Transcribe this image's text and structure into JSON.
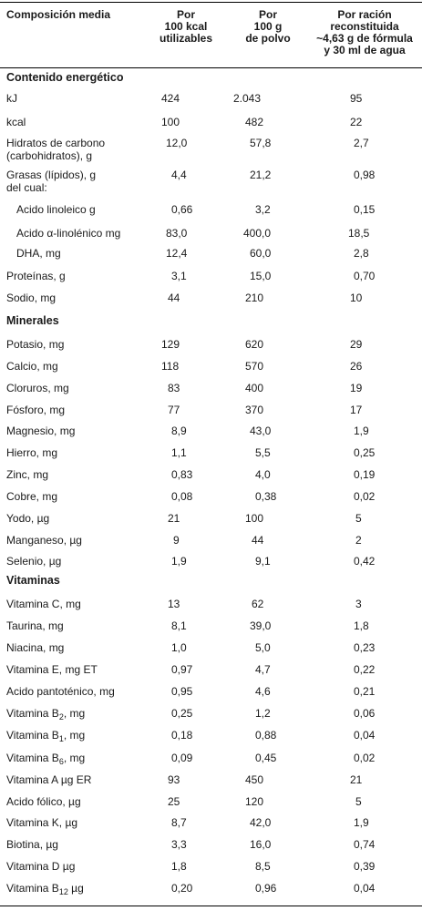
{
  "headers": [
    "Composición media",
    "Por\n100 kcal\nutilizables",
    "Por\n100 g\nde polvo",
    "Por ración\nreconstituida\n~4,63 g de fórmula\ny 30 ml de agua"
  ],
  "sections": [
    {
      "title": "Contenido energético",
      "rows": [
        {
          "label": "kJ",
          "v": [
            "424",
            "2.043",
            "95"
          ]
        },
        {
          "label": "kcal",
          "v": [
            "100",
            "482",
            "22"
          ]
        },
        {
          "label": "Hidratos de carbono\n(carbohidratos), g",
          "v": [
            "12,0",
            "57,8",
            "2,7"
          ]
        },
        {
          "label": "Grasas (lípidos), g\ndel cual:",
          "v": [
            "4,4",
            "21,2",
            "0,98"
          ]
        },
        {
          "label": "Acido linoleico g",
          "indent": true,
          "v": [
            "0,66",
            "3,2",
            "0,15"
          ]
        },
        {
          "label": "Acido α-linolénico mg",
          "indent": true,
          "v": [
            "83,0",
            "400,0",
            "18,5"
          ]
        },
        {
          "label": "DHA, mg",
          "indent": true,
          "v": [
            "12,4",
            "60,0",
            "2,8"
          ]
        },
        {
          "label": "Proteínas, g",
          "v": [
            "3,1",
            "15,0",
            "0,70"
          ]
        },
        {
          "label": "Sodio, mg",
          "v": [
            "44",
            "210",
            "10"
          ]
        }
      ]
    },
    {
      "title": "Minerales",
      "rows": [
        {
          "label": "Potasio, mg",
          "v": [
            "129",
            "620",
            "29"
          ]
        },
        {
          "label": "Calcio, mg",
          "v": [
            "118",
            "570",
            "26"
          ]
        },
        {
          "label": "Cloruros, mg",
          "v": [
            "83",
            "400",
            "19"
          ]
        },
        {
          "label": "Fósforo, mg",
          "v": [
            "77",
            "370",
            "17"
          ]
        },
        {
          "label": "Magnesio, mg",
          "v": [
            "8,9",
            "43,0",
            "1,9"
          ]
        },
        {
          "label": "Hierro, mg",
          "v": [
            "1,1",
            "5,5",
            "0,25"
          ]
        },
        {
          "label": "Zinc, mg",
          "v": [
            "0,83",
            "4,0",
            "0,19"
          ]
        },
        {
          "label": "Cobre, mg",
          "v": [
            "0,08",
            "0,38",
            "0,02"
          ]
        },
        {
          "label": "Yodo, µg",
          "v": [
            "21",
            "100",
            "5"
          ]
        },
        {
          "label": "Manganeso, µg",
          "v": [
            "9",
            "44",
            "2"
          ]
        },
        {
          "label": "Selenio, µg",
          "v": [
            "1,9",
            "9,1",
            "0,42"
          ]
        }
      ]
    },
    {
      "title": "Vitaminas",
      "rows": [
        {
          "label": "Vitamina C, mg",
          "v": [
            "13",
            "62",
            "3"
          ]
        },
        {
          "label": "Taurina, mg",
          "v": [
            "8,1",
            "39,0",
            "1,8"
          ]
        },
        {
          "label": "Niacina, mg",
          "v": [
            "1,0",
            "5,0",
            "0,23"
          ]
        },
        {
          "label": "Vitamina E, mg ET",
          "v": [
            "0,97",
            "4,7",
            "0,22"
          ]
        },
        {
          "label": "Acido pantoténico, mg",
          "v": [
            "0,95",
            "4,6",
            "0,21"
          ]
        },
        {
          "label": "Vitamina B",
          "sub": "2",
          "suffix": ", mg",
          "v": [
            "0,25",
            "1,2",
            "0,06"
          ]
        },
        {
          "label": "Vitamina B",
          "sub": "1",
          "suffix": ", mg",
          "v": [
            "0,18",
            "0,88",
            "0,04"
          ]
        },
        {
          "label": "Vitamina B",
          "sub": "6",
          "suffix": ", mg",
          "v": [
            "0,09",
            "0,45",
            "0,02"
          ]
        },
        {
          "label": "Vitamina A µg ER",
          "v": [
            "93",
            "450",
            "21"
          ]
        },
        {
          "label": "Acido fólico, µg",
          "v": [
            "25",
            "120",
            "5"
          ]
        },
        {
          "label": "Vitamina K, µg",
          "v": [
            "8,7",
            "42,0",
            "1,9"
          ]
        },
        {
          "label": "Biotina, µg",
          "v": [
            "3,3",
            "16,0",
            "0,74"
          ]
        },
        {
          "label": "Vitamina D µg",
          "v": [
            "1,8",
            "8,5",
            "0,39"
          ]
        },
        {
          "label": "Vitamina B",
          "sub": "12",
          "suffix": " µg",
          "v": [
            "0,20",
            "0,96",
            "0,04"
          ]
        }
      ]
    }
  ]
}
